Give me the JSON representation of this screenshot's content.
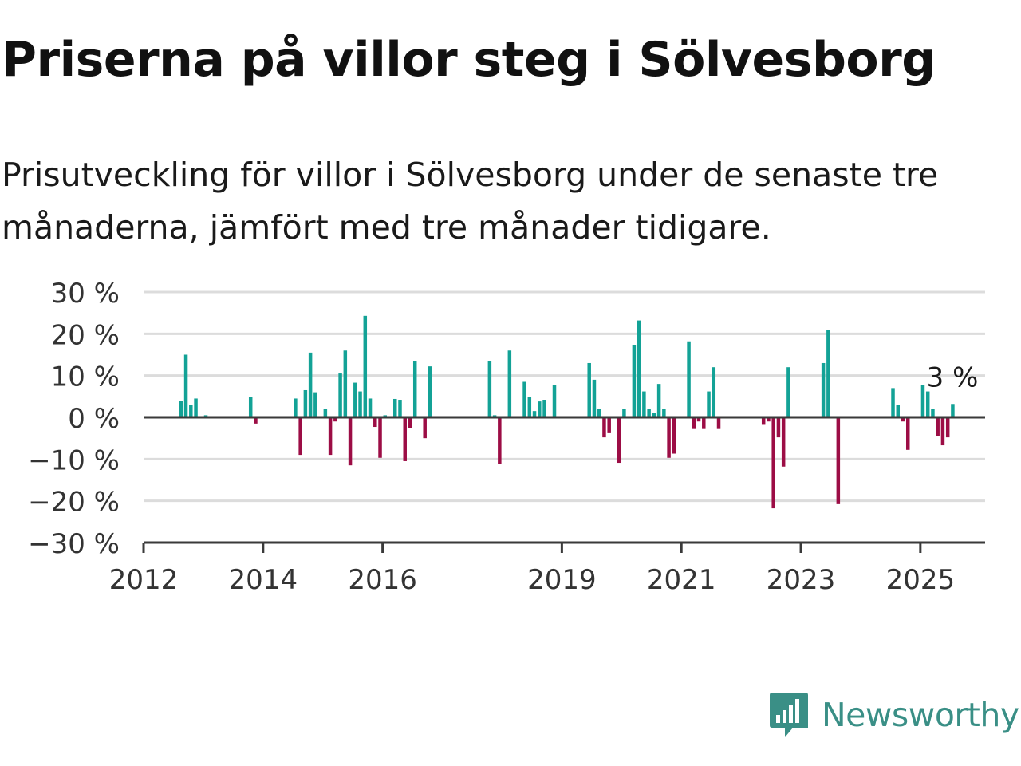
{
  "header": {
    "title": "Priserna på villor steg i Sölvesborg",
    "subtitle": "Prisutveckling för villor i Sölvesborg under de senaste tre månaderna, jämfört med tre månader tidigare."
  },
  "logo": {
    "text": "Newsworthy",
    "icon": "newsworthy-bar-chart-icon"
  },
  "colors": {
    "positive": "#13a296",
    "negative": "#9c0d45",
    "grid": "#dcdcdc",
    "axis": "#3a3a3a",
    "logo": "#3a8f86"
  },
  "chart_data": {
    "type": "bar",
    "x_type": "date",
    "y_unit": "%",
    "ylim": [
      -30,
      30
    ],
    "y_ticks": [
      30,
      20,
      10,
      0,
      -10,
      -20,
      -30
    ],
    "y_tick_labels": [
      "30 %",
      "20 %",
      "10 %",
      "0 %",
      "−10 %",
      "−20 %",
      "−30 %"
    ],
    "xlim": [
      "2012-01",
      "2026-02"
    ],
    "x_ticks": [
      "2012-01",
      "2014-01",
      "2016-01",
      "2019-01",
      "2021-01",
      "2023-01",
      "2025-01"
    ],
    "x_tick_labels": [
      "2012",
      "2014",
      "2016",
      "2019",
      "2021",
      "2023",
      "2025"
    ],
    "grid": true,
    "last_value_label": "3 %",
    "series": [
      {
        "x": [
          "2012-08",
          "2012-09",
          "2012-10",
          "2012-11",
          "2013-01",
          "2013-10",
          "2013-11",
          "2014-07",
          "2014-08",
          "2014-09",
          "2014-10",
          "2014-11",
          "2015-01",
          "2015-02",
          "2015-03",
          "2015-04",
          "2015-05",
          "2015-06",
          "2015-07",
          "2015-08",
          "2015-09",
          "2015-10",
          "2015-11",
          "2015-12",
          "2016-01",
          "2016-03",
          "2016-04",
          "2016-05",
          "2016-06",
          "2016-07",
          "2016-09",
          "2016-10",
          "2017-10",
          "2017-11",
          "2017-12",
          "2018-02",
          "2018-05",
          "2018-06",
          "2018-07",
          "2018-08",
          "2018-09",
          "2018-11",
          "2019-06",
          "2019-07",
          "2019-08",
          "2019-09",
          "2019-10",
          "2019-12",
          "2020-01",
          "2020-03",
          "2020-04",
          "2020-05",
          "2020-06",
          "2020-07",
          "2020-08",
          "2020-09",
          "2020-10",
          "2020-11",
          "2021-02",
          "2021-03",
          "2021-04",
          "2021-05",
          "2021-06",
          "2021-07",
          "2021-08",
          "2022-05",
          "2022-06",
          "2022-07",
          "2022-08",
          "2022-09",
          "2022-10",
          "2023-05",
          "2023-06",
          "2023-08",
          "2024-07",
          "2024-08",
          "2024-09",
          "2024-10",
          "2025-01",
          "2025-02",
          "2025-03",
          "2025-04",
          "2025-05",
          "2025-06",
          "2025-07"
        ],
        "values": [
          4,
          15,
          3,
          4.5,
          0.5,
          4.8,
          -1.5,
          4.5,
          -9,
          6.5,
          15.5,
          6,
          2,
          -9,
          -1,
          10.5,
          16,
          -11.5,
          8.3,
          6.2,
          24.3,
          4.5,
          -2.3,
          -9.7,
          0.5,
          4.4,
          4.2,
          -10.5,
          -2.5,
          13.5,
          -5,
          12.2,
          13.5,
          0.5,
          -11.2,
          16,
          8.5,
          4.8,
          1.5,
          3.8,
          4.2,
          7.8,
          13,
          9,
          2,
          -4.8,
          -3.8,
          -10.9,
          2,
          17.3,
          23.2,
          6.2,
          2,
          1,
          8,
          2,
          -9.7,
          -8.7,
          18.2,
          -2.8,
          -1,
          -2.8,
          6.2,
          12,
          -2.8,
          -1.8,
          -1,
          -21.8,
          -4.8,
          -11.8,
          12,
          13,
          21,
          -20.8,
          7,
          3,
          -1,
          -7.8,
          7.8,
          6.2,
          2,
          -4.5,
          -6.7,
          -4.8,
          3.2
        ]
      }
    ]
  }
}
